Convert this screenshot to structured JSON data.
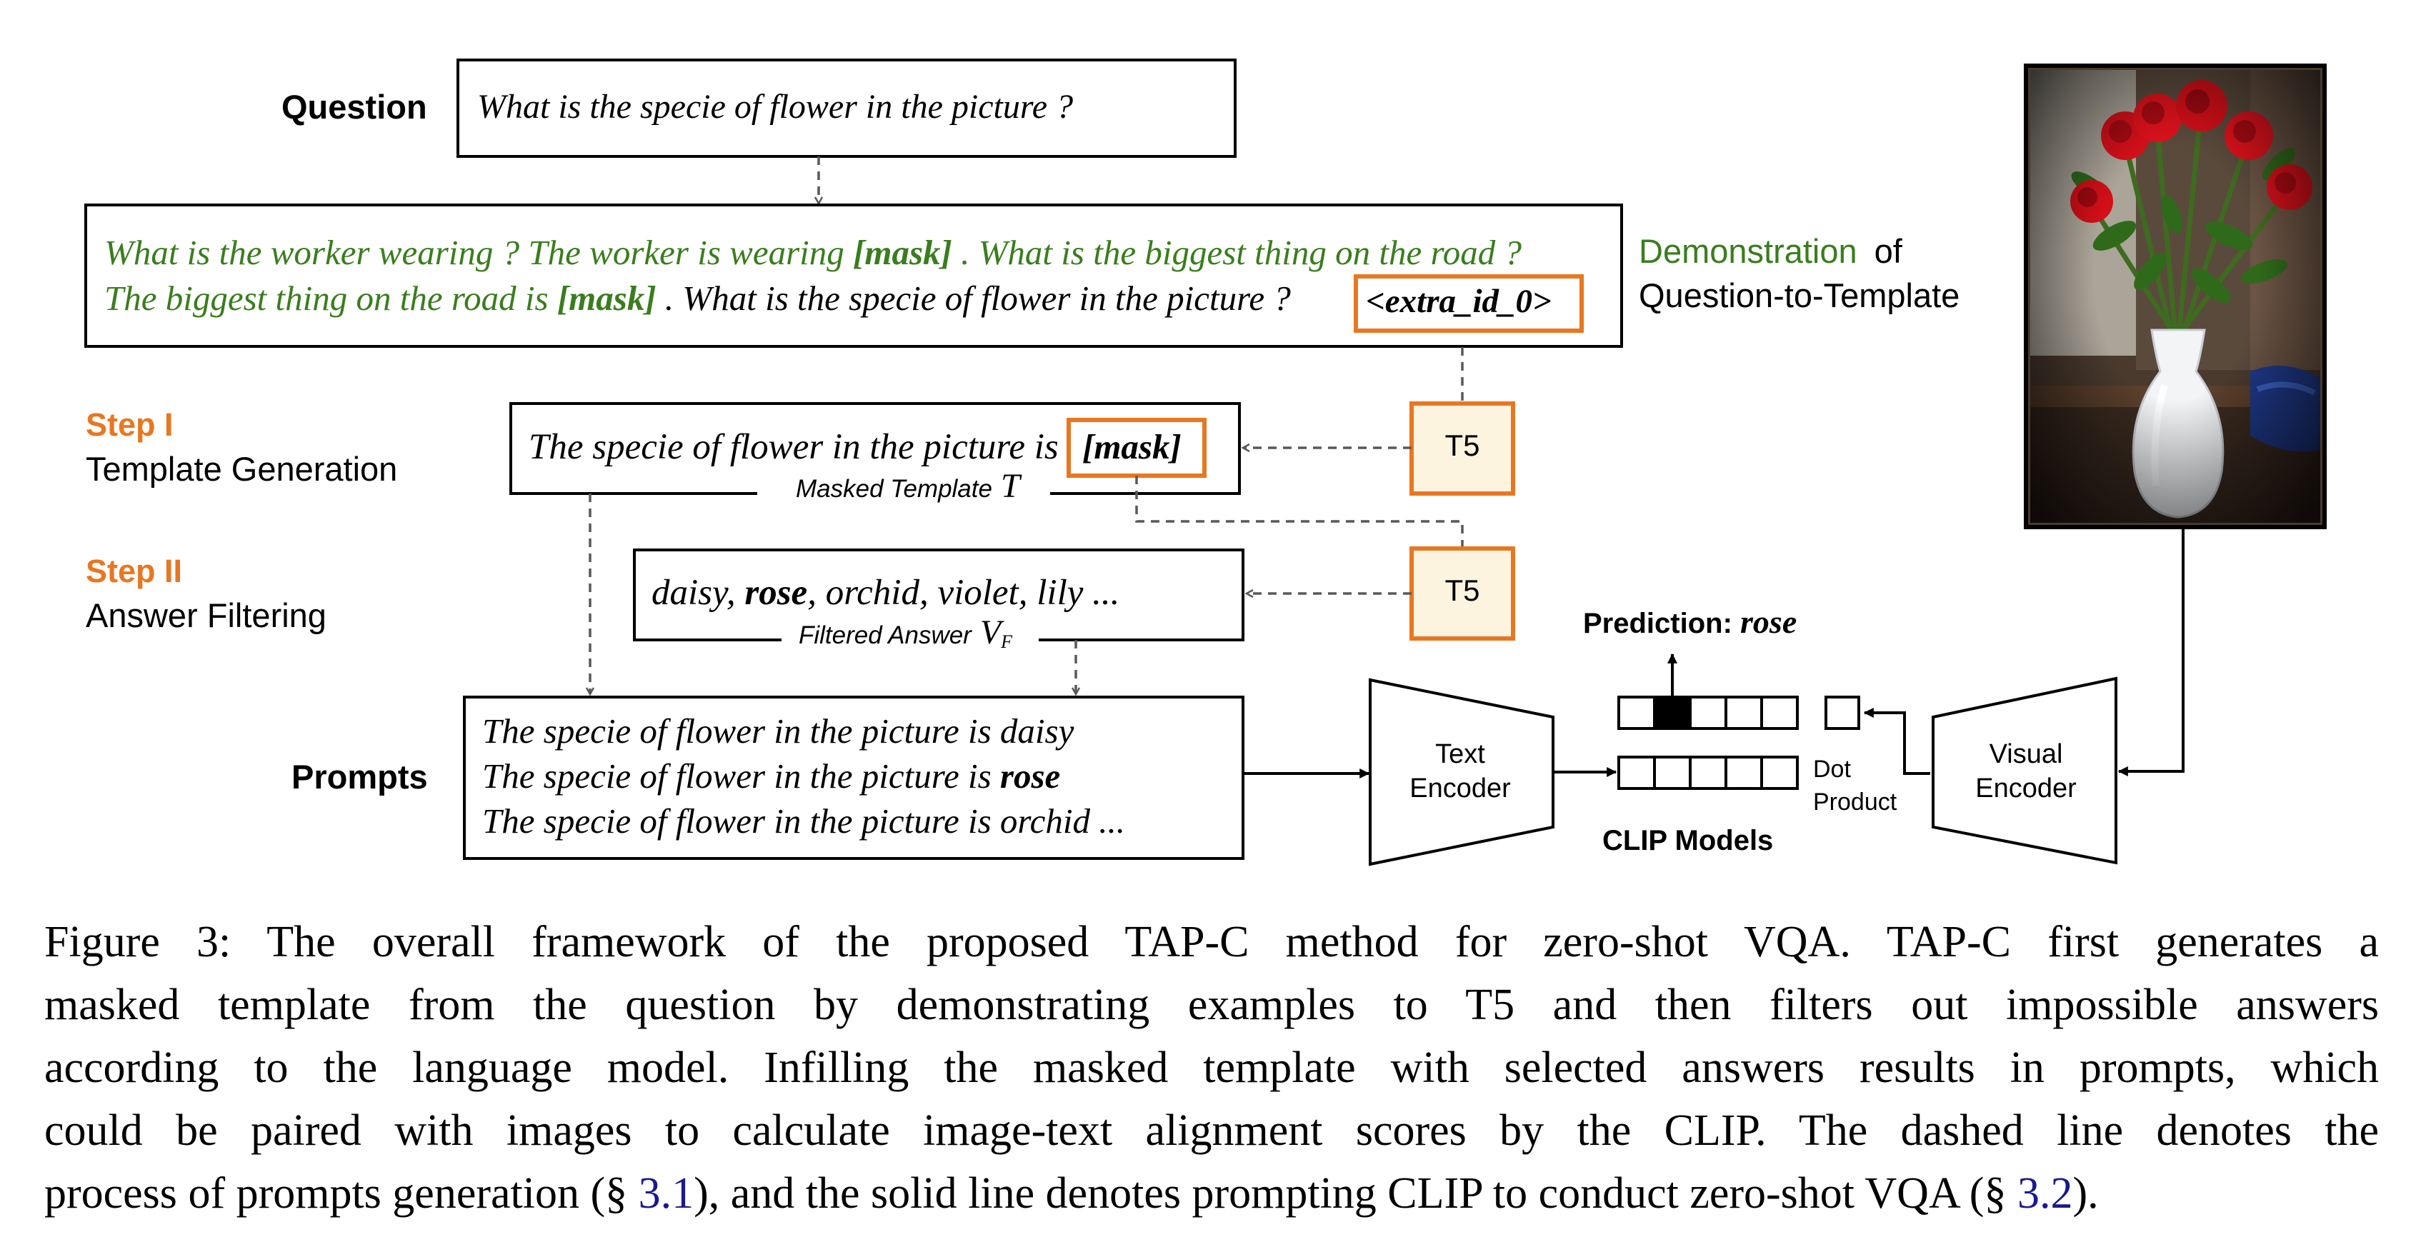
{
  "question": {
    "label": "Question",
    "text": "What is the specie of flower in the picture ?"
  },
  "demonstration": {
    "line1_green_a": "What is the worker wearing ? The worker is wearing ",
    "line1_mask": "[mask]",
    "line1_green_b": " . What is the biggest thing on the road ?",
    "line2_green_a": "The biggest thing on the road is ",
    "line2_mask": "[mask]",
    "line2_black": " . What is the specie of flower in the picture ?",
    "extra_id": "<extra_id_0>",
    "label_green": "Demonstration",
    "label_of": "of",
    "label_line2": "Question-to-Template"
  },
  "step1": {
    "title": "Step I",
    "subtitle": "Template Generation",
    "template_text": "The specie of flower in the picture is",
    "mask": "[mask]",
    "caption": "Masked Template",
    "symbol": "T"
  },
  "step2": {
    "title": "Step II",
    "subtitle": "Answer Filtering",
    "answers_a": "daisy, ",
    "answers_bold": "rose",
    "answers_b": ", orchid, violet, lily ...",
    "caption": "Filtered Answer",
    "symbol": "V",
    "symbol_sub": "F"
  },
  "t5_label": "T5",
  "prompts": {
    "label": "Prompts",
    "line1": "The specie of flower in the picture is daisy",
    "line2_a": "The specie of flower in the picture is ",
    "line2_bold": "rose",
    "line3": "The specie of flower in the picture is orchid  ..."
  },
  "text_encoder": {
    "line1": "Text",
    "line2": "Encoder"
  },
  "visual_encoder": {
    "line1": "Visual",
    "line2": "Encoder"
  },
  "prediction": {
    "label": "Prediction: ",
    "value": "rose"
  },
  "dot_product": {
    "line1": "Dot",
    "line2": "Product"
  },
  "clip_label": "CLIP Models",
  "colors": {
    "orange": "#e87722",
    "green": "#3a7d1e",
    "t5_fill": "#fdf4e0",
    "dash": "#595959"
  },
  "caption": {
    "line1": "Figure 3:  The overall framework of the proposed TAP-C method for zero-shot VQA. TAP-C first generates a",
    "line2": "masked template from the question by demonstrating examples to T5 and then filters out impossible answers",
    "line3": "according to the language model.  Infilling the masked template with selected answers results in prompts, which",
    "line4": "could be paired with images to calculate image-text alignment scores by the CLIP. The dashed line denotes the",
    "line5_a": "process of prompts generation (§ ",
    "line5_ref1": "3.1",
    "line5_b": "), and the solid line denotes prompting CLIP to conduct zero-shot VQA (§ ",
    "line5_ref2": "3.2",
    "line5_c": ")."
  }
}
